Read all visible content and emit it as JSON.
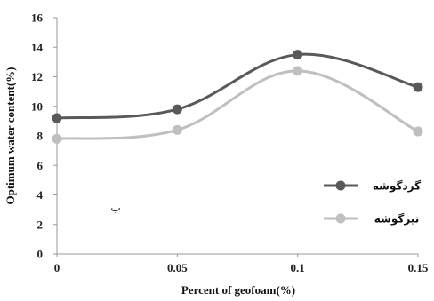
{
  "chart_data": {
    "type": "line",
    "title": "",
    "xlabel": "Percent of geofoam(%)",
    "ylabel": "Optimum water content(%)",
    "categories": [
      "0",
      "0.05",
      "0.1",
      "0.15"
    ],
    "ylim": [
      0,
      16
    ],
    "yticks": [
      "0",
      "2",
      "4",
      "6",
      "8",
      "10",
      "12",
      "14",
      "16"
    ],
    "grid": false,
    "legend_position": "right",
    "series": [
      {
        "name": "گردگوشه",
        "values": [
          9.2,
          9.8,
          13.5,
          11.3
        ],
        "color": "#595959"
      },
      {
        "name": "تیزگوشه",
        "values": [
          7.8,
          8.4,
          12.4,
          8.3
        ],
        "color": "#bfbfbf"
      }
    ],
    "annotations": [
      {
        "text": "ب"
      }
    ],
    "colors": {
      "axis": "#999999"
    }
  }
}
